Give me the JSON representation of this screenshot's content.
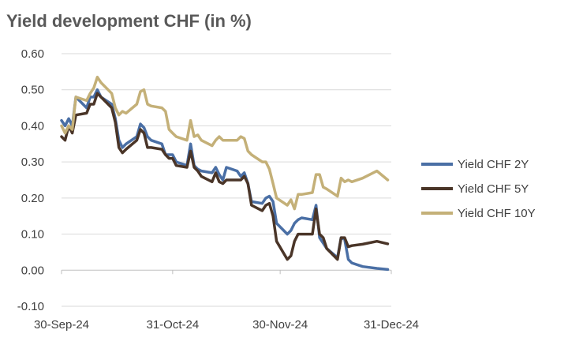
{
  "chart_data": {
    "type": "line",
    "title": "Yield development CHF (in %)",
    "xlabel": "",
    "ylabel": "",
    "ylim": [
      -0.1,
      0.6
    ],
    "yticks": [
      {
        "value": -0.1,
        "label": "-0.10",
        "color": "#e00000"
      },
      {
        "value": 0.0,
        "label": "0.00"
      },
      {
        "value": 0.1,
        "label": "0.10"
      },
      {
        "value": 0.2,
        "label": "0.20"
      },
      {
        "value": 0.3,
        "label": "0.30"
      },
      {
        "value": 0.4,
        "label": "0.40"
      },
      {
        "value": 0.5,
        "label": "0.50"
      },
      {
        "value": 0.6,
        "label": "0.60"
      }
    ],
    "xlim": [
      "2024-09-30",
      "2024-12-31"
    ],
    "xticks": [
      {
        "value": "2024-09-30",
        "label": "30-Sep-24"
      },
      {
        "value": "2024-10-31",
        "label": "31-Oct-24"
      },
      {
        "value": "2024-11-30",
        "label": "30-Nov-24"
      },
      {
        "value": "2024-12-31",
        "label": "31-Dec-24"
      }
    ],
    "grid": true,
    "legend_position": "right",
    "series": [
      {
        "name": "Yield CHF 2Y",
        "color": "#4a6fa5",
        "points": [
          [
            "2024-09-30",
            0.415
          ],
          [
            "2024-10-01",
            0.4
          ],
          [
            "2024-10-02",
            0.42
          ],
          [
            "2024-10-03",
            0.4
          ],
          [
            "2024-10-04",
            0.48
          ],
          [
            "2024-10-07",
            0.45
          ],
          [
            "2024-10-08",
            0.48
          ],
          [
            "2024-10-09",
            0.48
          ],
          [
            "2024-10-10",
            0.5
          ],
          [
            "2024-10-11",
            0.48
          ],
          [
            "2024-10-14",
            0.46
          ],
          [
            "2024-10-15",
            0.42
          ],
          [
            "2024-10-16",
            0.36
          ],
          [
            "2024-10-17",
            0.34
          ],
          [
            "2024-10-18",
            0.35
          ],
          [
            "2024-10-21",
            0.37
          ],
          [
            "2024-10-22",
            0.405
          ],
          [
            "2024-10-23",
            0.395
          ],
          [
            "2024-10-24",
            0.37
          ],
          [
            "2024-10-25",
            0.36
          ],
          [
            "2024-10-28",
            0.35
          ],
          [
            "2024-10-29",
            0.32
          ],
          [
            "2024-10-30",
            0.32
          ],
          [
            "2024-10-31",
            0.32
          ],
          [
            "2024-11-01",
            0.3
          ],
          [
            "2024-11-04",
            0.29
          ],
          [
            "2024-11-05",
            0.35
          ],
          [
            "2024-11-06",
            0.29
          ],
          [
            "2024-11-07",
            0.28
          ],
          [
            "2024-11-08",
            0.275
          ],
          [
            "2024-11-11",
            0.27
          ],
          [
            "2024-11-12",
            0.285
          ],
          [
            "2024-11-13",
            0.265
          ],
          [
            "2024-11-14",
            0.25
          ],
          [
            "2024-11-15",
            0.285
          ],
          [
            "2024-11-18",
            0.275
          ],
          [
            "2024-11-19",
            0.26
          ],
          [
            "2024-11-20",
            0.27
          ],
          [
            "2024-11-21",
            0.24
          ],
          [
            "2024-11-22",
            0.19
          ],
          [
            "2024-11-25",
            0.185
          ],
          [
            "2024-11-26",
            0.2
          ],
          [
            "2024-11-27",
            0.205
          ],
          [
            "2024-11-28",
            0.19
          ],
          [
            "2024-11-29",
            0.13
          ],
          [
            "2024-12-02",
            0.1
          ],
          [
            "2024-12-03",
            0.11
          ],
          [
            "2024-12-04",
            0.13
          ],
          [
            "2024-12-05",
            0.14
          ],
          [
            "2024-12-06",
            0.145
          ],
          [
            "2024-12-09",
            0.14
          ],
          [
            "2024-12-10",
            0.18
          ],
          [
            "2024-12-11",
            0.09
          ],
          [
            "2024-12-12",
            0.075
          ],
          [
            "2024-12-13",
            0.06
          ],
          [
            "2024-12-16",
            0.035
          ],
          [
            "2024-12-17",
            0.09
          ],
          [
            "2024-12-18",
            0.085
          ],
          [
            "2024-12-19",
            0.03
          ],
          [
            "2024-12-20",
            0.02
          ],
          [
            "2024-12-23",
            0.01
          ],
          [
            "2024-12-27",
            0.005
          ],
          [
            "2024-12-30",
            0.002
          ]
        ]
      },
      {
        "name": "Yield CHF 5Y",
        "color": "#4a3528",
        "points": [
          [
            "2024-09-30",
            0.37
          ],
          [
            "2024-10-01",
            0.36
          ],
          [
            "2024-10-02",
            0.4
          ],
          [
            "2024-10-03",
            0.38
          ],
          [
            "2024-10-04",
            0.43
          ],
          [
            "2024-10-07",
            0.435
          ],
          [
            "2024-10-08",
            0.46
          ],
          [
            "2024-10-09",
            0.46
          ],
          [
            "2024-10-10",
            0.49
          ],
          [
            "2024-10-11",
            0.48
          ],
          [
            "2024-10-14",
            0.45
          ],
          [
            "2024-10-15",
            0.41
          ],
          [
            "2024-10-16",
            0.34
          ],
          [
            "2024-10-17",
            0.325
          ],
          [
            "2024-10-18",
            0.335
          ],
          [
            "2024-10-21",
            0.36
          ],
          [
            "2024-10-22",
            0.39
          ],
          [
            "2024-10-23",
            0.38
          ],
          [
            "2024-10-24",
            0.34
          ],
          [
            "2024-10-25",
            0.34
          ],
          [
            "2024-10-28",
            0.335
          ],
          [
            "2024-10-29",
            0.32
          ],
          [
            "2024-10-30",
            0.31
          ],
          [
            "2024-10-31",
            0.31
          ],
          [
            "2024-11-01",
            0.29
          ],
          [
            "2024-11-04",
            0.285
          ],
          [
            "2024-11-05",
            0.33
          ],
          [
            "2024-11-06",
            0.285
          ],
          [
            "2024-11-07",
            0.275
          ],
          [
            "2024-11-08",
            0.26
          ],
          [
            "2024-11-11",
            0.245
          ],
          [
            "2024-11-12",
            0.27
          ],
          [
            "2024-11-13",
            0.245
          ],
          [
            "2024-11-14",
            0.24
          ],
          [
            "2024-11-15",
            0.25
          ],
          [
            "2024-11-18",
            0.25
          ],
          [
            "2024-11-19",
            0.25
          ],
          [
            "2024-11-20",
            0.26
          ],
          [
            "2024-11-21",
            0.24
          ],
          [
            "2024-11-22",
            0.18
          ],
          [
            "2024-11-25",
            0.165
          ],
          [
            "2024-11-26",
            0.18
          ],
          [
            "2024-11-27",
            0.185
          ],
          [
            "2024-11-28",
            0.15
          ],
          [
            "2024-11-29",
            0.08
          ],
          [
            "2024-12-02",
            0.03
          ],
          [
            "2024-12-03",
            0.04
          ],
          [
            "2024-12-04",
            0.08
          ],
          [
            "2024-12-05",
            0.1
          ],
          [
            "2024-12-06",
            0.1
          ],
          [
            "2024-12-09",
            0.1
          ],
          [
            "2024-12-10",
            0.17
          ],
          [
            "2024-12-11",
            0.1
          ],
          [
            "2024-12-12",
            0.09
          ],
          [
            "2024-12-13",
            0.06
          ],
          [
            "2024-12-16",
            0.03
          ],
          [
            "2024-12-17",
            0.09
          ],
          [
            "2024-12-18",
            0.09
          ],
          [
            "2024-12-19",
            0.065
          ],
          [
            "2024-12-20",
            0.068
          ],
          [
            "2024-12-23",
            0.072
          ],
          [
            "2024-12-27",
            0.08
          ],
          [
            "2024-12-30",
            0.073
          ]
        ]
      },
      {
        "name": "Yield CHF 10Y",
        "color": "#c4b078",
        "points": [
          [
            "2024-09-30",
            0.4
          ],
          [
            "2024-10-01",
            0.38
          ],
          [
            "2024-10-02",
            0.4
          ],
          [
            "2024-10-03",
            0.39
          ],
          [
            "2024-10-04",
            0.48
          ],
          [
            "2024-10-07",
            0.47
          ],
          [
            "2024-10-08",
            0.49
          ],
          [
            "2024-10-09",
            0.505
          ],
          [
            "2024-10-10",
            0.535
          ],
          [
            "2024-10-11",
            0.52
          ],
          [
            "2024-10-14",
            0.49
          ],
          [
            "2024-10-15",
            0.45
          ],
          [
            "2024-10-16",
            0.43
          ],
          [
            "2024-10-17",
            0.44
          ],
          [
            "2024-10-18",
            0.435
          ],
          [
            "2024-10-21",
            0.46
          ],
          [
            "2024-10-22",
            0.495
          ],
          [
            "2024-10-23",
            0.5
          ],
          [
            "2024-10-24",
            0.46
          ],
          [
            "2024-10-25",
            0.455
          ],
          [
            "2024-10-28",
            0.45
          ],
          [
            "2024-10-29",
            0.44
          ],
          [
            "2024-10-30",
            0.39
          ],
          [
            "2024-10-31",
            0.38
          ],
          [
            "2024-11-01",
            0.37
          ],
          [
            "2024-11-04",
            0.36
          ],
          [
            "2024-11-05",
            0.415
          ],
          [
            "2024-11-06",
            0.37
          ],
          [
            "2024-11-07",
            0.375
          ],
          [
            "2024-11-08",
            0.36
          ],
          [
            "2024-11-11",
            0.345
          ],
          [
            "2024-11-12",
            0.36
          ],
          [
            "2024-11-13",
            0.37
          ],
          [
            "2024-11-14",
            0.36
          ],
          [
            "2024-11-15",
            0.36
          ],
          [
            "2024-11-18",
            0.36
          ],
          [
            "2024-11-19",
            0.37
          ],
          [
            "2024-11-20",
            0.365
          ],
          [
            "2024-11-21",
            0.33
          ],
          [
            "2024-11-22",
            0.32
          ],
          [
            "2024-11-25",
            0.3
          ],
          [
            "2024-11-26",
            0.3
          ],
          [
            "2024-11-27",
            0.28
          ],
          [
            "2024-11-28",
            0.24
          ],
          [
            "2024-11-29",
            0.2
          ],
          [
            "2024-12-02",
            0.18
          ],
          [
            "2024-12-03",
            0.195
          ],
          [
            "2024-12-04",
            0.17
          ],
          [
            "2024-12-05",
            0.21
          ],
          [
            "2024-12-06",
            0.21
          ],
          [
            "2024-12-09",
            0.215
          ],
          [
            "2024-12-10",
            0.265
          ],
          [
            "2024-12-11",
            0.265
          ],
          [
            "2024-12-12",
            0.23
          ],
          [
            "2024-12-13",
            0.225
          ],
          [
            "2024-12-16",
            0.205
          ],
          [
            "2024-12-17",
            0.255
          ],
          [
            "2024-12-18",
            0.245
          ],
          [
            "2024-12-19",
            0.25
          ],
          [
            "2024-12-20",
            0.245
          ],
          [
            "2024-12-23",
            0.255
          ],
          [
            "2024-12-27",
            0.275
          ],
          [
            "2024-12-30",
            0.25
          ]
        ]
      }
    ]
  }
}
